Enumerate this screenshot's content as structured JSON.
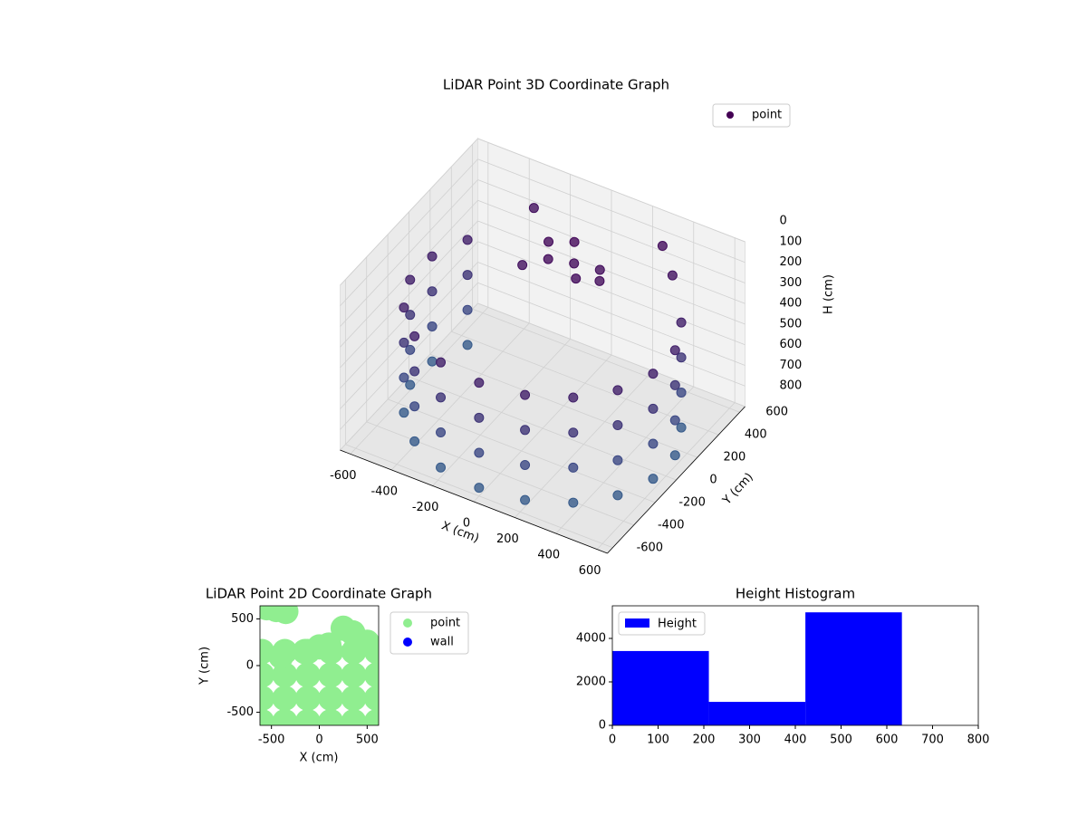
{
  "chart_data": [
    {
      "type": "scatter3d",
      "title": "LiDAR Point 3D Coordinate Graph",
      "xlabel": "X (cm)",
      "ylabel": "Y (cm)",
      "zlabel": "H (cm)",
      "xlim": [
        -650,
        650
      ],
      "ylim": [
        -650,
        650
      ],
      "zlim": [
        0,
        800
      ],
      "zinverted": true,
      "xticks": [
        -600,
        -400,
        -200,
        0,
        200,
        400,
        600
      ],
      "yticks": [
        -600,
        -400,
        -200,
        0,
        200,
        400,
        600
      ],
      "zticks": [
        0,
        100,
        200,
        300,
        400,
        500,
        600,
        700,
        800
      ],
      "grid": true,
      "cmap": "viridis",
      "legend": "upper right",
      "series": [
        {
          "name": "point",
          "color": "#440154",
          "x": [
            -520,
            -520,
            -520,
            -520,
            -591,
            -591,
            -591,
            -591,
            -591,
            -591,
            -591,
            -591,
            -520,
            -520,
            -520,
            -520,
            -386,
            -386,
            -386,
            -386,
            -205,
            -205,
            -205,
            -205,
            0,
            0,
            0,
            0,
            205,
            205,
            205,
            205,
            386,
            386,
            386,
            386,
            520,
            520,
            520,
            520,
            591,
            591,
            591,
            591,
            591,
            591,
            591,
            591,
            520,
            520,
            520,
            520,
            -50,
            50,
            100,
            -100,
            0,
            150,
            -150,
            200,
            -300,
            300,
            400
          ],
          "y": [
            300,
            300,
            300,
            300,
            104,
            104,
            104,
            104,
            -104,
            -104,
            -104,
            -104,
            -300,
            -300,
            -300,
            -300,
            -460,
            -460,
            -460,
            -460,
            -564,
            -564,
            -564,
            -564,
            -600,
            -600,
            -600,
            -600,
            -564,
            -564,
            -564,
            -564,
            -460,
            -460,
            -460,
            -460,
            -300,
            -300,
            -300,
            -300,
            -104,
            -104,
            -104,
            -104,
            104,
            104,
            104,
            104,
            300,
            300,
            300,
            300,
            150,
            200,
            120,
            250,
            300,
            250,
            100,
            150,
            500,
            550,
            450
          ],
          "z": [
            250,
            420,
            590,
            760,
            250,
            420,
            590,
            760,
            250,
            420,
            590,
            760,
            250,
            420,
            590,
            760,
            250,
            420,
            590,
            760,
            250,
            420,
            590,
            760,
            250,
            420,
            590,
            760,
            250,
            420,
            590,
            760,
            250,
            420,
            590,
            760,
            250,
            420,
            590,
            760,
            250,
            420,
            590,
            760,
            250,
            420,
            590,
            760,
            250,
            420,
            590,
            760,
            80,
            90,
            100,
            70,
            60,
            110,
            120,
            90,
            120,
            100,
            150
          ]
        }
      ]
    },
    {
      "type": "scatter",
      "title": "LiDAR Point 2D Coordinate Graph",
      "xlabel": "X (cm)",
      "ylabel": "Y (cm)",
      "xlim": [
        -620,
        620
      ],
      "ylim": [
        -640,
        640
      ],
      "xticks": [
        -500,
        0,
        500
      ],
      "yticks": [
        -500,
        0,
        500
      ],
      "legend": "outside right",
      "series": [
        {
          "name": "point",
          "color": "#90ee90",
          "x": [
            -600,
            -360,
            -120,
            120,
            360,
            600,
            -600,
            -360,
            -120,
            120,
            360,
            600,
            -600,
            -360,
            -120,
            120,
            360,
            600,
            -600,
            -360,
            -120,
            120,
            360,
            600,
            -450,
            -350,
            -550,
            100,
            -400,
            250,
            350,
            -150,
            500,
            0
          ],
          "y": [
            -600,
            -600,
            -600,
            -600,
            -600,
            -600,
            -350,
            -350,
            -350,
            -350,
            -350,
            -350,
            -100,
            -100,
            -100,
            -100,
            -100,
            -100,
            150,
            150,
            150,
            150,
            150,
            150,
            600,
            580,
            620,
            220,
            100,
            400,
            350,
            150,
            250,
            200
          ]
        },
        {
          "name": "wall",
          "color": "#0000ff",
          "x": [],
          "y": []
        }
      ]
    },
    {
      "type": "histogram",
      "title": "Height Histogram",
      "name": "Height",
      "color": "#0000ff",
      "bins": [
        0,
        211,
        422,
        633
      ],
      "values": [
        3420,
        1080,
        5200
      ],
      "xlim": [
        0,
        800
      ],
      "ylim": [
        0,
        5500
      ],
      "xticks": [
        0,
        100,
        200,
        300,
        400,
        500,
        600,
        700,
        800
      ],
      "yticks": [
        0,
        2000,
        4000
      ],
      "legend": "upper left"
    }
  ]
}
